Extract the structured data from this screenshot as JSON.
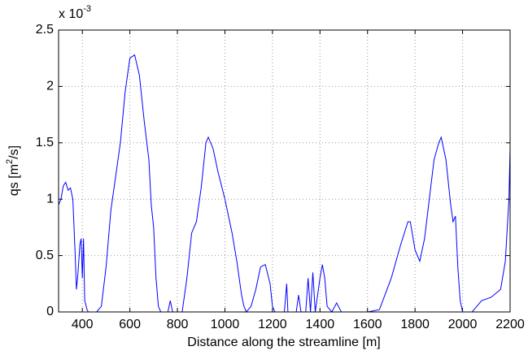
{
  "chart_data": {
    "type": "line",
    "xlabel": "Distance along the streamline [m]",
    "ylabel": [
      "qs [m",
      "2",
      "/s]"
    ],
    "y_multiplier": [
      "x 10",
      "-3"
    ],
    "xlim": [
      300,
      2200
    ],
    "xticks": [
      400,
      600,
      800,
      1000,
      1200,
      1400,
      1600,
      1800,
      2000,
      2200
    ],
    "ylim": [
      0,
      2.5
    ],
    "yticks": [
      0,
      0.5,
      1,
      1.5,
      2,
      2.5
    ],
    "grid": true,
    "series": [
      {
        "color": "#0000ff",
        "x": [
          300,
          310,
          320,
          330,
          340,
          350,
          360,
          370,
          375,
          380,
          390,
          395,
          400,
          405,
          410,
          420,
          425,
          460,
          480,
          500,
          520,
          540,
          560,
          580,
          600,
          620,
          640,
          660,
          680,
          690,
          700,
          710,
          720,
          730,
          760,
          770,
          780,
          820,
          840,
          860,
          880,
          900,
          920,
          930,
          950,
          970,
          1000,
          1030,
          1050,
          1070,
          1080,
          1090,
          1110,
          1130,
          1150,
          1170,
          1190,
          1200,
          1210,
          1250,
          1260,
          1265,
          1300,
          1310,
          1320,
          1340,
          1350,
          1360,
          1370,
          1380,
          1400,
          1410,
          1420,
          1430,
          1450,
          1470,
          1490,
          1600,
          1650,
          1700,
          1740,
          1770,
          1780,
          1800,
          1820,
          1840,
          1860,
          1880,
          1900,
          1910,
          1930,
          1950,
          1960,
          1970,
          1980,
          1990,
          2000,
          2040,
          2080,
          2120,
          2160,
          2180,
          2195,
          2200
        ],
        "values": [
          0.95,
          1.0,
          1.12,
          1.15,
          1.08,
          1.1,
          1.0,
          0.5,
          0.2,
          0.3,
          0.6,
          0.65,
          0.3,
          0.65,
          0.1,
          0.02,
          0,
          0,
          0.05,
          0.4,
          0.9,
          1.2,
          1.5,
          1.95,
          2.25,
          2.28,
          2.1,
          1.7,
          1.35,
          0.95,
          0.75,
          0.3,
          0.05,
          0,
          0,
          0.1,
          0,
          0,
          0.3,
          0.7,
          0.8,
          1.1,
          1.5,
          1.55,
          1.45,
          1.25,
          1.0,
          0.7,
          0.45,
          0.15,
          0.05,
          0,
          0.05,
          0.2,
          0.4,
          0.42,
          0.25,
          0.05,
          0,
          0,
          0.25,
          0,
          0,
          0.15,
          0,
          0,
          0.3,
          0,
          0.35,
          0,
          0.3,
          0.42,
          0.3,
          0.05,
          0,
          0.08,
          0,
          0,
          0.02,
          0.3,
          0.6,
          0.8,
          0.8,
          0.55,
          0.45,
          0.65,
          1.0,
          1.35,
          1.5,
          1.55,
          1.35,
          0.95,
          0.8,
          0.85,
          0.4,
          0.1,
          0,
          0,
          0.1,
          0.13,
          0.2,
          0.45,
          1.0,
          1.45
        ]
      }
    ]
  }
}
